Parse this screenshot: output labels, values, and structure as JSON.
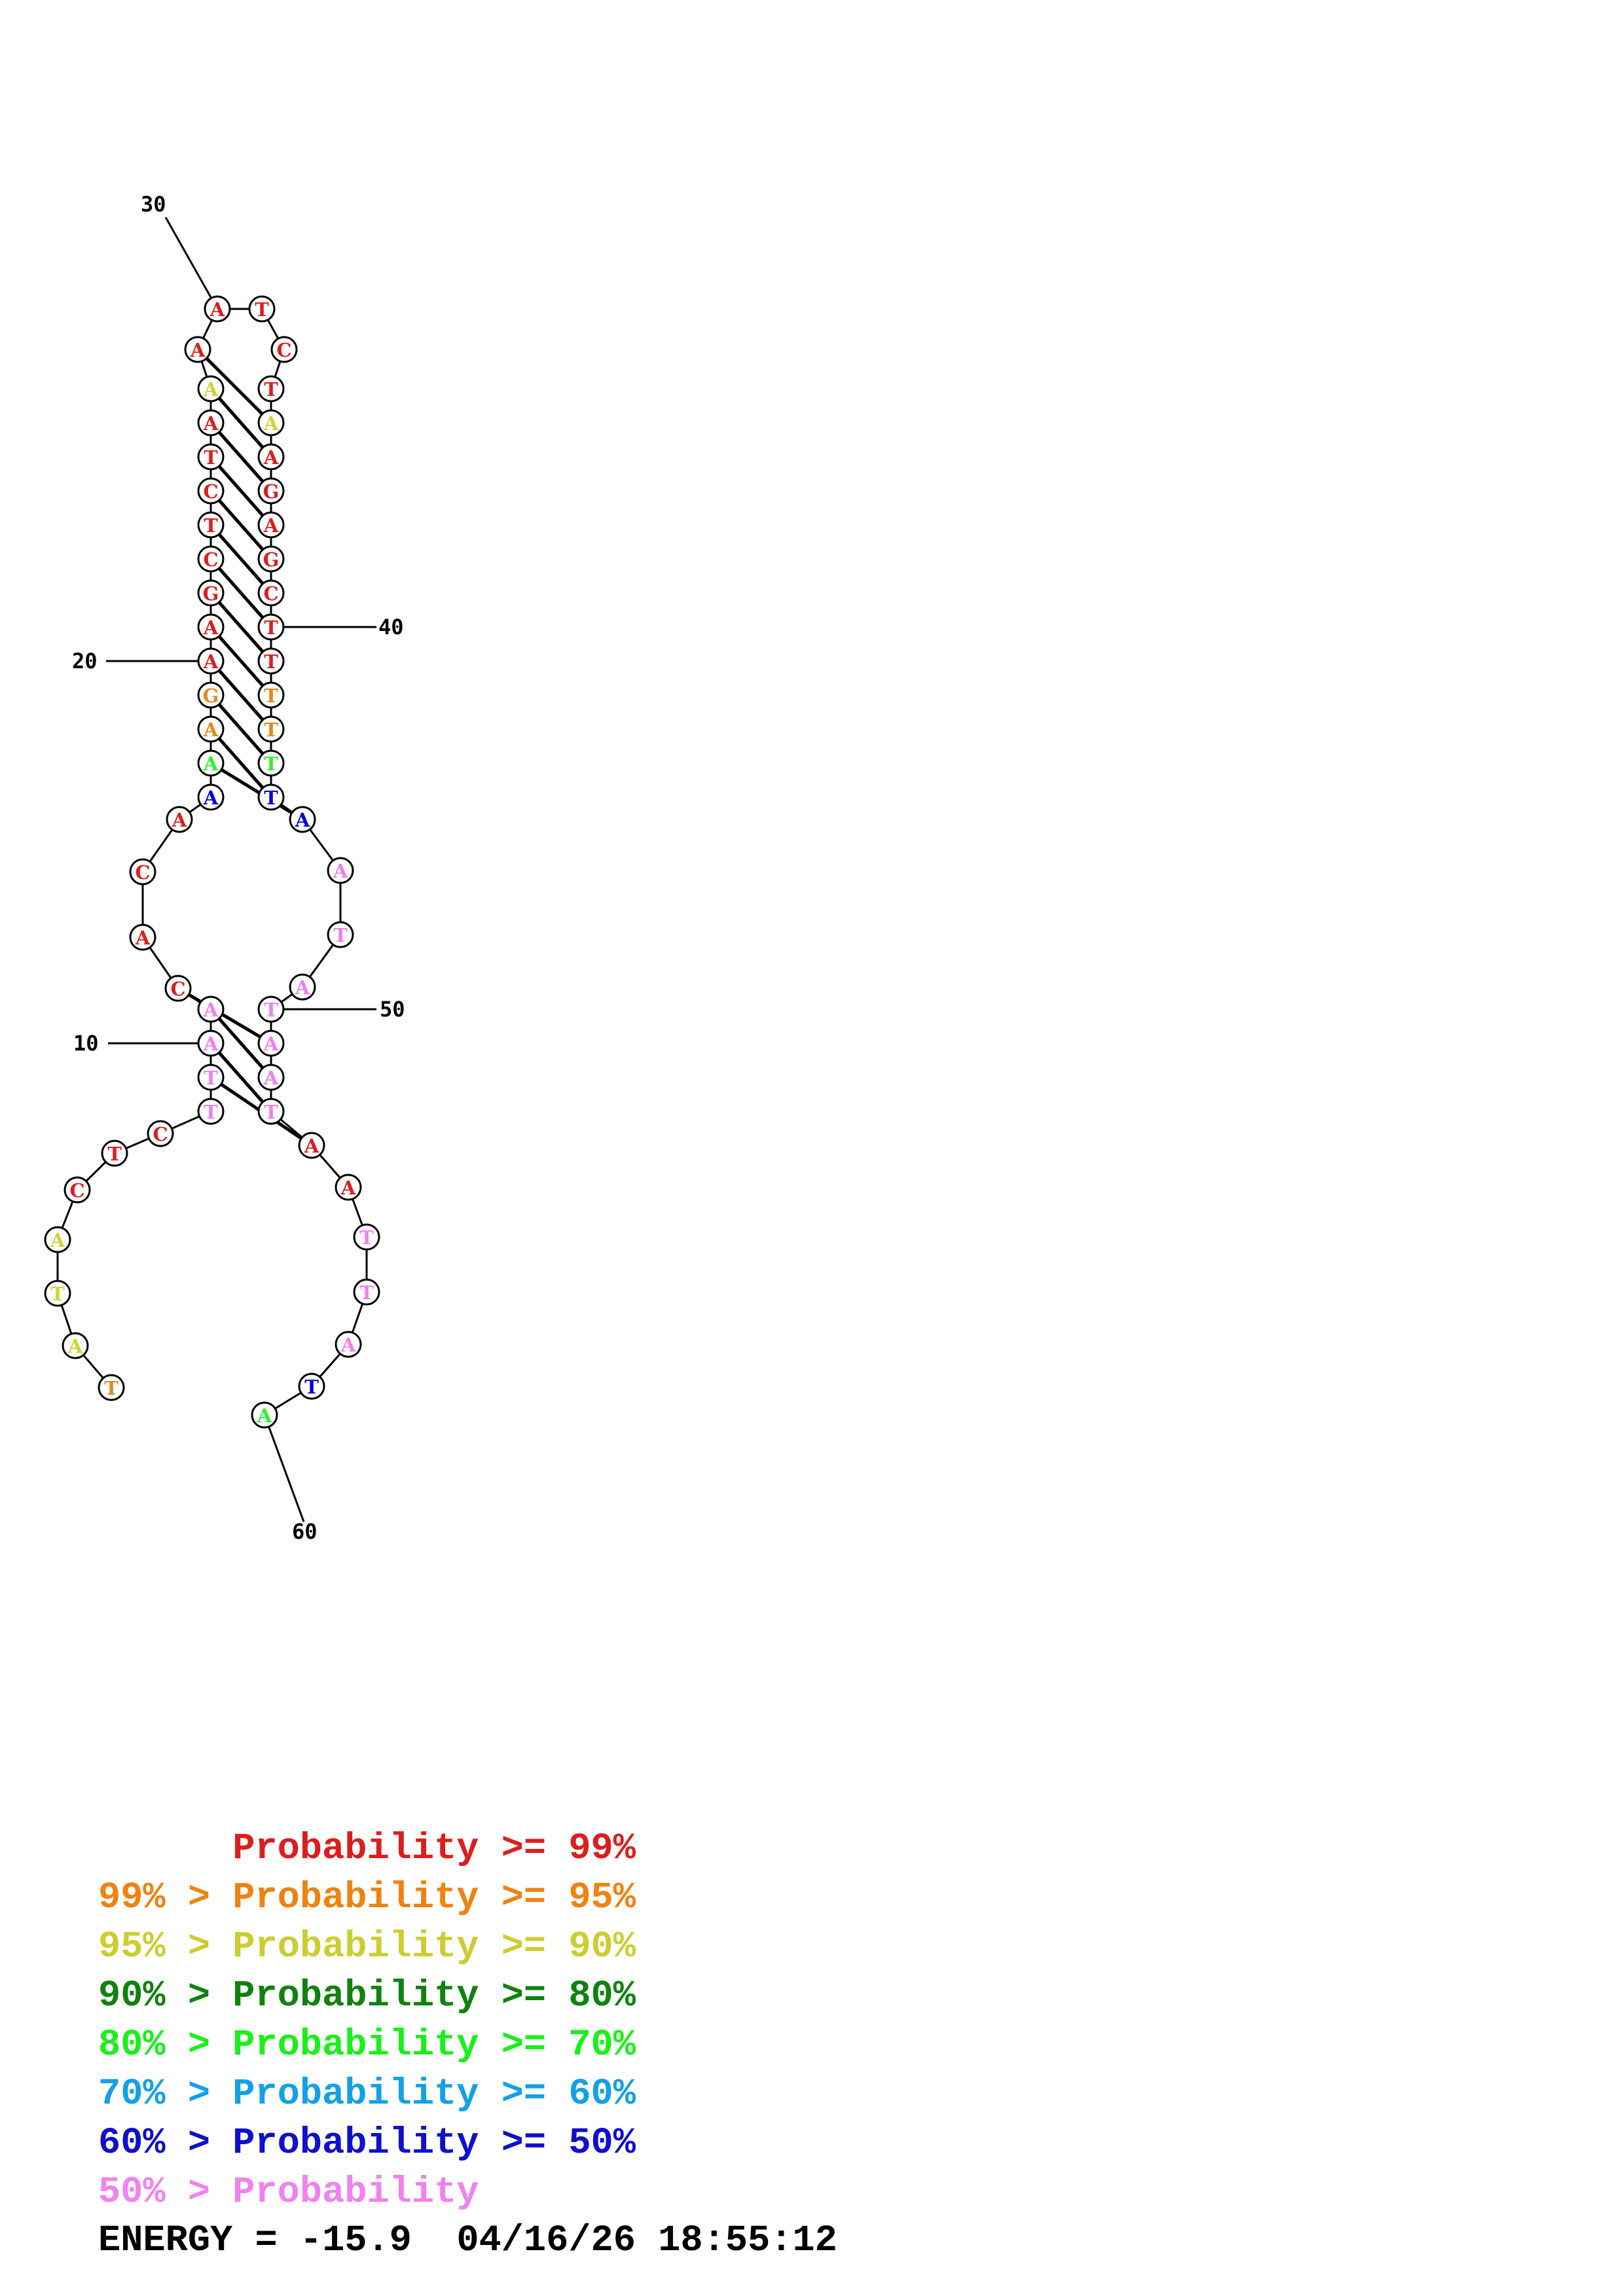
{
  "sequence": "TATACTCTTAACACAAAAGAAGCTCTAAAATCTAAGAGCTTTTTTAATATAATAATTATA",
  "base_colors": [
    "#e18a1e",
    "#d2d23c",
    "#d2d23c",
    "#d2d23c",
    "#dc1e1e",
    "#dc1e1e",
    "#dc1e1e",
    "#f080f0",
    "#f080f0",
    "#f080f0",
    "#f080f0",
    "#dc1e1e",
    "#dc1e1e",
    "#dc1e1e",
    "#dc1e1e",
    "#0000dc",
    "#32f032",
    "#e18a1e",
    "#e18a1e",
    "#dc1e1e",
    "#dc1e1e",
    "#dc1e1e",
    "#dc1e1e",
    "#dc1e1e",
    "#dc1e1e",
    "#dc1e1e",
    "#dc1e1e",
    "#d2d23c",
    "#dc1e1e",
    "#dc1e1e",
    "#dc1e1e",
    "#dc1e1e",
    "#dc1e1e",
    "#d2d23c",
    "#dc1e1e",
    "#dc1e1e",
    "#dc1e1e",
    "#dc1e1e",
    "#dc1e1e",
    "#dc1e1e",
    "#dc1e1e",
    "#e18a1e",
    "#e18a1e",
    "#32f032",
    "#0000dc",
    "#0000dc",
    "#f080f0",
    "#f080f0",
    "#f080f0",
    "#f080f0",
    "#f080f0",
    "#f080f0",
    "#f080f0",
    "#dc1e1e",
    "#dc1e1e",
    "#f080f0",
    "#f080f0",
    "#f080f0",
    "#0000dc",
    "#32f032"
  ],
  "base_pairs": [
    [
      8,
      53
    ],
    [
      9,
      52
    ],
    [
      10,
      51
    ],
    [
      11,
      50
    ],
    [
      16,
      45
    ],
    [
      17,
      44
    ],
    [
      18,
      43
    ],
    [
      19,
      42
    ],
    [
      20,
      41
    ],
    [
      21,
      40
    ],
    [
      22,
      39
    ],
    [
      23,
      38
    ],
    [
      24,
      37
    ],
    [
      25,
      36
    ],
    [
      26,
      35
    ],
    [
      27,
      34
    ],
    [
      28,
      33
    ]
  ],
  "position_labels": [
    {
      "position": 10,
      "text": "10"
    },
    {
      "position": 20,
      "text": "20"
    },
    {
      "position": 30,
      "text": "30"
    },
    {
      "position": 40,
      "text": "40"
    },
    {
      "position": 50,
      "text": "50"
    },
    {
      "position": 60,
      "text": "60"
    }
  ],
  "legend": [
    {
      "prefix": "",
      "label": "Probability >= 99%",
      "color": "#dc1e1e"
    },
    {
      "prefix": "99% > ",
      "label": "Probability >= 95%",
      "color": "#f0820f"
    },
    {
      "prefix": "95% > ",
      "label": "Probability >= 90%",
      "color": "#cdcd32"
    },
    {
      "prefix": "90% > ",
      "label": "Probability >= 80%",
      "color": "#0f820f"
    },
    {
      "prefix": "80% > ",
      "label": "Probability >= 70%",
      "color": "#19f019"
    },
    {
      "prefix": "70% > ",
      "label": "Probability >= 60%",
      "color": "#14a0e6"
    },
    {
      "prefix": "60% > ",
      "label": "Probability >= 50%",
      "color": "#0f0fcd"
    },
    {
      "prefix": "50% > ",
      "label": "Probability",
      "color": "#f082f0"
    }
  ],
  "energy": {
    "label": "ENERGY",
    "value": "-15.9",
    "timestamp": "04/16/26 18:55:12"
  }
}
